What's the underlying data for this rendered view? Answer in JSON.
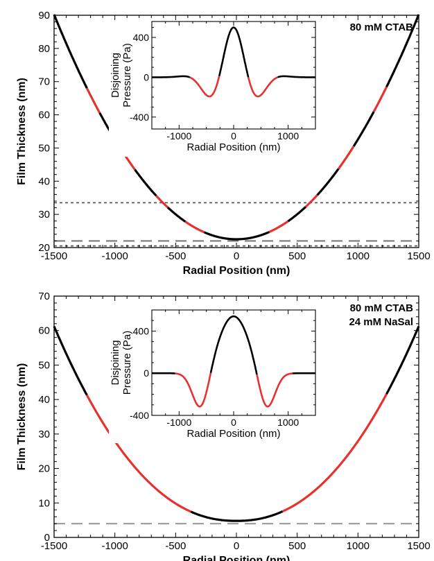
{
  "chart_data": [
    {
      "type": "line",
      "xlabel": "Radial Position (nm)",
      "ylabel": "Film Thickness (nm)",
      "xlim": [
        -1500,
        1500
      ],
      "ylim": [
        20,
        90
      ],
      "xticks": [
        -1500,
        -1000,
        -500,
        0,
        500,
        1000,
        1500
      ],
      "yticks": [
        20,
        30,
        40,
        50,
        60,
        70,
        80,
        90
      ],
      "annotation": "80 mM CTAB",
      "profile": {
        "h0": 22.5,
        "a": 3.01e-05,
        "p": 2.0
      },
      "red_segments": [
        [
          -1230,
          -1130
        ],
        [
          -960,
          -840
        ],
        [
          -660,
          -570
        ],
        [
          -420,
          -270
        ],
        [
          270,
          420
        ],
        [
          570,
          660
        ],
        [
          840,
          960
        ],
        [
          1130,
          1230
        ]
      ],
      "reference_lines": [
        {
          "y": 33.5,
          "style": "short-dash"
        },
        {
          "y": 22.0,
          "style": "long-dash"
        },
        {
          "y": 20.5,
          "style": "short-dash"
        }
      ],
      "colors": {
        "curve": "#000000",
        "highlight": "#e8312f",
        "dash": "#555555",
        "long_dash": "#777777"
      },
      "inset": {
        "type": "line",
        "xlabel": "Radial Position (nm)",
        "ylabel_lines": [
          "Disjoining",
          "Pressure (Pa)"
        ],
        "xlim": [
          -1500,
          1500
        ],
        "ylim": [
          -520,
          560
        ],
        "xticks": [
          -1000,
          0,
          1000
        ],
        "yticks": [
          -400,
          0,
          400
        ],
        "curve": {
          "type": "oscillatory",
          "A": 500,
          "omega": 0.00583,
          "decay": 500
        }
      }
    },
    {
      "type": "line",
      "xlabel": "Radial Position (nm)",
      "ylabel": "Film Thickness (nm)",
      "xlim": [
        -1500,
        1500
      ],
      "ylim": [
        0,
        70
      ],
      "xticks": [
        -1500,
        -1000,
        -500,
        0,
        500,
        1000,
        1500
      ],
      "yticks": [
        0,
        10,
        20,
        30,
        40,
        50,
        60,
        70
      ],
      "annotation": [
        "80 mM CTAB",
        "24 mM NaSal"
      ],
      "profile": {
        "h0": 4.8,
        "a": 5.81e-06,
        "p": 2.2
      },
      "red_segments": [
        [
          -1230,
          -380
        ],
        [
          380,
          1230
        ]
      ],
      "reference_lines": [
        {
          "y": 4.0,
          "style": "long-dash"
        }
      ],
      "colors": {
        "curve": "#000000",
        "highlight": "#e8312f",
        "long_dash": "#a0a0a0"
      },
      "inset": {
        "type": "line",
        "xlabel": "Radial Position (nm)",
        "ylabel_lines": [
          "Disjoining",
          "Pressure (Pa)"
        ],
        "xlim": [
          -1500,
          1500
        ],
        "ylim": [
          -400,
          600
        ],
        "xticks": [
          -1000,
          0,
          1000
        ],
        "yticks": [
          -400,
          0,
          400
        ],
        "curve": {
          "type": "gaussian",
          "A": 540,
          "sigma": 285,
          "B": 370,
          "x0": 600,
          "s2": 150
        },
        "black_range": [
          -420,
          420
        ]
      }
    }
  ]
}
